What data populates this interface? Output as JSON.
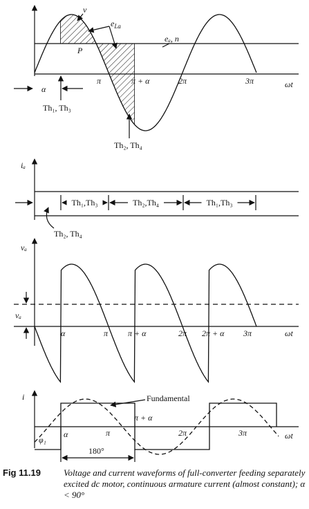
{
  "panel_1": {
    "v": "v",
    "e_la": {
      "base": "e",
      "sub": "La"
    },
    "e_a_n": "eₐ, n",
    "p": "P",
    "alpha": "α",
    "pi": "π",
    "pi_plus_alpha": "π + α",
    "two_pi": "2π",
    "three_pi": "3π",
    "omega_t": "ωt",
    "th13": "Th₁, Th₃",
    "th24": "Th₂, Th₄"
  },
  "panel_2": {
    "i_a": "iₐ",
    "intervals": [
      "Th₁,Th₃",
      "Th₂,Th₄",
      "Th₁,Th₃"
    ],
    "th24": "Th₂, Th₄"
  },
  "panel_3": {
    "v_a_top": "vₐ",
    "v_a_avg": "vₐ",
    "alpha": "α",
    "pi": "π",
    "pi_plus_alpha": "π + α",
    "two_pi": "2π",
    "two_pi_plus_alpha": "2π + α",
    "three_pi": "3π",
    "omega_t": "ωt"
  },
  "panel_4": {
    "i": "i",
    "fundamental": "Fundamental",
    "alpha": "α",
    "pi": "π",
    "pi_plus_alpha": "π + α",
    "two_pi": "2π",
    "three_pi": "3π",
    "omega_t": "ωt",
    "phi_1": "φ₁",
    "angle": "180°"
  },
  "caption": {
    "figure": "Fig 11.19",
    "text": "Voltage and current waveforms of full-converter feeding separately excited dc motor, continuous armature current (almost constant); α < 90°"
  }
}
